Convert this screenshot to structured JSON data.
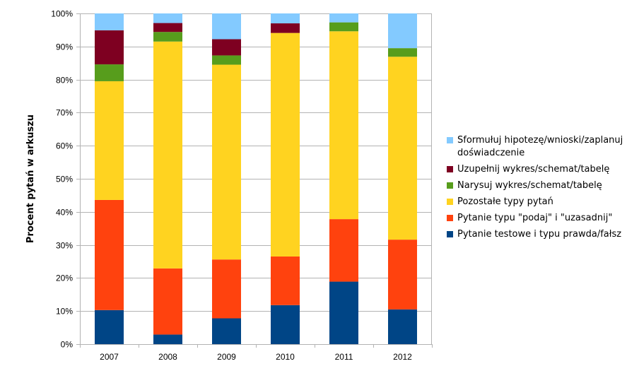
{
  "chart_data": {
    "type": "bar",
    "stacked": true,
    "ylabel": "Procent pytań w arkuszu",
    "xlabel": "",
    "ylim": [
      0,
      100
    ],
    "y_ticks": [
      "0%",
      "10%",
      "20%",
      "30%",
      "40%",
      "50%",
      "60%",
      "70%",
      "80%",
      "90%",
      "100%"
    ],
    "categories": [
      "2007",
      "2008",
      "2009",
      "2010",
      "2011",
      "2012"
    ],
    "grid": true,
    "legend_position": "right",
    "series": [
      {
        "name": "Pytanie testowe i typu prawda/fałsz",
        "color": "#004586",
        "values": [
          10.3,
          2.9,
          7.8,
          11.8,
          18.9,
          10.5
        ]
      },
      {
        "name": "Pytanie typu \"podaj\" i \"uzasadnij\"",
        "color": "#ff420e",
        "values": [
          33.3,
          20.0,
          17.8,
          14.7,
          18.9,
          21.1
        ]
      },
      {
        "name": "Pozostałe typy pytań",
        "color": "#ffd320",
        "values": [
          35.9,
          68.6,
          58.9,
          67.6,
          56.8,
          55.3
        ]
      },
      {
        "name": "Narysuj wykres/schemat/tabelę",
        "color": "#579d1c",
        "values": [
          5.1,
          2.9,
          2.8,
          0.0,
          2.7,
          2.6
        ]
      },
      {
        "name": "Uzupełnij wykres/schemat/tabelę",
        "color": "#7e0021",
        "values": [
          10.3,
          2.7,
          4.9,
          2.9,
          0.0,
          0.0
        ]
      },
      {
        "name": "Sformułuj hipotezę/wnioski/zaplanuj doświadczenie",
        "color": "#83caff",
        "values": [
          5.1,
          2.9,
          7.8,
          3.0,
          2.7,
          10.5
        ]
      }
    ]
  }
}
